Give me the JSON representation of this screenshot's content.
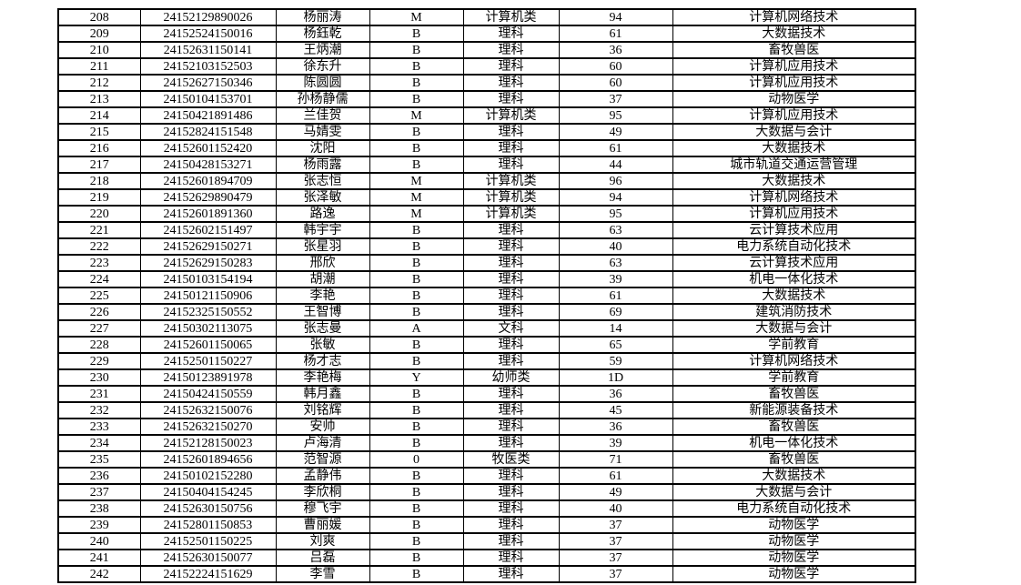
{
  "colors": {
    "background": "#ffffff",
    "border": "#000000",
    "text": "#000000"
  },
  "table": {
    "rows": [
      [
        "208",
        "24152129890026",
        "杨丽涛",
        "M",
        "计算机类",
        "94",
        "计算机网络技术"
      ],
      [
        "209",
        "24152524150016",
        "杨鈺乾",
        "B",
        "理科",
        "61",
        "大数据技术"
      ],
      [
        "210",
        "24152631150141",
        "王炳潮",
        "B",
        "理科",
        "36",
        "畜牧兽医"
      ],
      [
        "211",
        "24152103152503",
        "徐东升",
        "B",
        "理科",
        "60",
        "计算机应用技术"
      ],
      [
        "212",
        "24152627150346",
        "陈圆圆",
        "B",
        "理科",
        "60",
        "计算机应用技术"
      ],
      [
        "213",
        "24150104153701",
        "孙杨静儒",
        "B",
        "理科",
        "37",
        "动物医学"
      ],
      [
        "214",
        "24150421891486",
        "兰佳贺",
        "M",
        "计算机类",
        "95",
        "计算机应用技术"
      ],
      [
        "215",
        "24152824151548",
        "马婧雯",
        "B",
        "理科",
        "49",
        "大数据与会计"
      ],
      [
        "216",
        "24152601152420",
        "沈阳",
        "B",
        "理科",
        "61",
        "大数据技术"
      ],
      [
        "217",
        "24150428153271",
        "杨雨露",
        "B",
        "理科",
        "44",
        "城市轨道交通运营管理"
      ],
      [
        "218",
        "24152601894709",
        "张志恒",
        "M",
        "计算机类",
        "96",
        "大数据技术"
      ],
      [
        "219",
        "24152629890479",
        "张泽敏",
        "M",
        "计算机类",
        "94",
        "计算机网络技术"
      ],
      [
        "220",
        "24152601891360",
        "路逸",
        "M",
        "计算机类",
        "95",
        "计算机应用技术"
      ],
      [
        "221",
        "24152602151497",
        "韩宇宇",
        "B",
        "理科",
        "63",
        "云计算技术应用"
      ],
      [
        "222",
        "24152629150271",
        "张星羽",
        "B",
        "理科",
        "40",
        "电力系统自动化技术"
      ],
      [
        "223",
        "24152629150283",
        "邢欣",
        "B",
        "理科",
        "63",
        "云计算技术应用"
      ],
      [
        "224",
        "24150103154194",
        "胡潮",
        "B",
        "理科",
        "39",
        "机电一体化技术"
      ],
      [
        "225",
        "24150121150906",
        "李艳",
        "B",
        "理科",
        "61",
        "大数据技术"
      ],
      [
        "226",
        "24152325150552",
        "王智博",
        "B",
        "理科",
        "69",
        "建筑消防技术"
      ],
      [
        "227",
        "24150302113075",
        "张志曼",
        "A",
        "文科",
        "14",
        "大数据与会计"
      ],
      [
        "228",
        "24152601150065",
        "张敏",
        "B",
        "理科",
        "65",
        "学前教育"
      ],
      [
        "229",
        "24152501150227",
        "杨才志",
        "B",
        "理科",
        "59",
        "计算机网络技术"
      ],
      [
        "230",
        "24150123891978",
        "李艳梅",
        "Y",
        "幼师类",
        "1D",
        "学前教育"
      ],
      [
        "231",
        "24150424150559",
        "韩月鑫",
        "B",
        "理科",
        "36",
        "畜牧兽医"
      ],
      [
        "232",
        "24152632150076",
        "刘铭辉",
        "B",
        "理科",
        "45",
        "新能源装备技术"
      ],
      [
        "233",
        "24152632150270",
        "安帅",
        "B",
        "理科",
        "36",
        "畜牧兽医"
      ],
      [
        "234",
        "24152128150023",
        "卢海清",
        "B",
        "理科",
        "39",
        "机电一体化技术"
      ],
      [
        "235",
        "24152601894656",
        "范智源",
        "0",
        "牧医类",
        "71",
        "畜牧兽医"
      ],
      [
        "236",
        "24150102152280",
        "孟静伟",
        "B",
        "理科",
        "61",
        "大数据技术"
      ],
      [
        "237",
        "24150404154245",
        "李欣桐",
        "B",
        "理科",
        "49",
        "大数据与会计"
      ],
      [
        "238",
        "24152630150756",
        "穆飞宇",
        "B",
        "理科",
        "40",
        "电力系统自动化技术"
      ],
      [
        "239",
        "24152801150853",
        "曹丽媛",
        "B",
        "理科",
        "37",
        "动物医学"
      ],
      [
        "240",
        "24152501150225",
        "刘爽",
        "B",
        "理科",
        "37",
        "动物医学"
      ],
      [
        "241",
        "24152630150077",
        "吕磊",
        "B",
        "理科",
        "37",
        "动物医学"
      ],
      [
        "242",
        "24152224151629",
        "李雪",
        "B",
        "理科",
        "37",
        "动物医学"
      ]
    ]
  }
}
